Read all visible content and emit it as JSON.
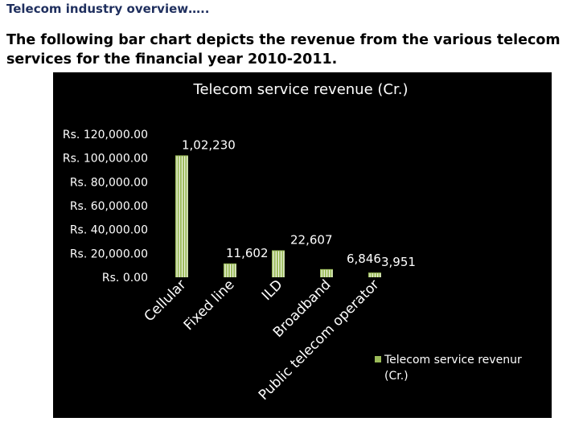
{
  "slide": {
    "title": "Telecom industry overview…..",
    "description": "The following bar chart depicts the revenue from the various telecom services for the financial year 2010-2011."
  },
  "chart_data": {
    "type": "bar",
    "title": "Telecom service revenue (Cr.)",
    "categories": [
      "Cellular",
      "Fixed line",
      "ILD",
      "Broadband",
      "Public telecom operator"
    ],
    "series": [
      {
        "name": "Telecom service revenur (Cr.)",
        "values": [
          102230,
          11602,
          22607,
          6846,
          3951
        ],
        "data_labels": [
          "1,02,230",
          "11,602",
          "22,607",
          "6,846",
          "3,951"
        ]
      }
    ],
    "ylim": [
      0,
      120000
    ],
    "yticks": [
      0,
      20000,
      40000,
      60000,
      80000,
      100000,
      120000
    ],
    "ytick_labels": [
      "Rs. 0.00",
      "Rs. 20,000.00",
      "Rs. 40,000.00",
      "Rs. 60,000.00",
      "Rs. 80,000.00",
      "Rs. 100,000.00",
      "Rs. 120,000.00"
    ],
    "grid": false,
    "legend_position": "bottom-right",
    "colors": {
      "background": "#000000",
      "bar": "#9bbb59",
      "bar_highlight": "#ffffff",
      "text": "#ffffff"
    }
  }
}
